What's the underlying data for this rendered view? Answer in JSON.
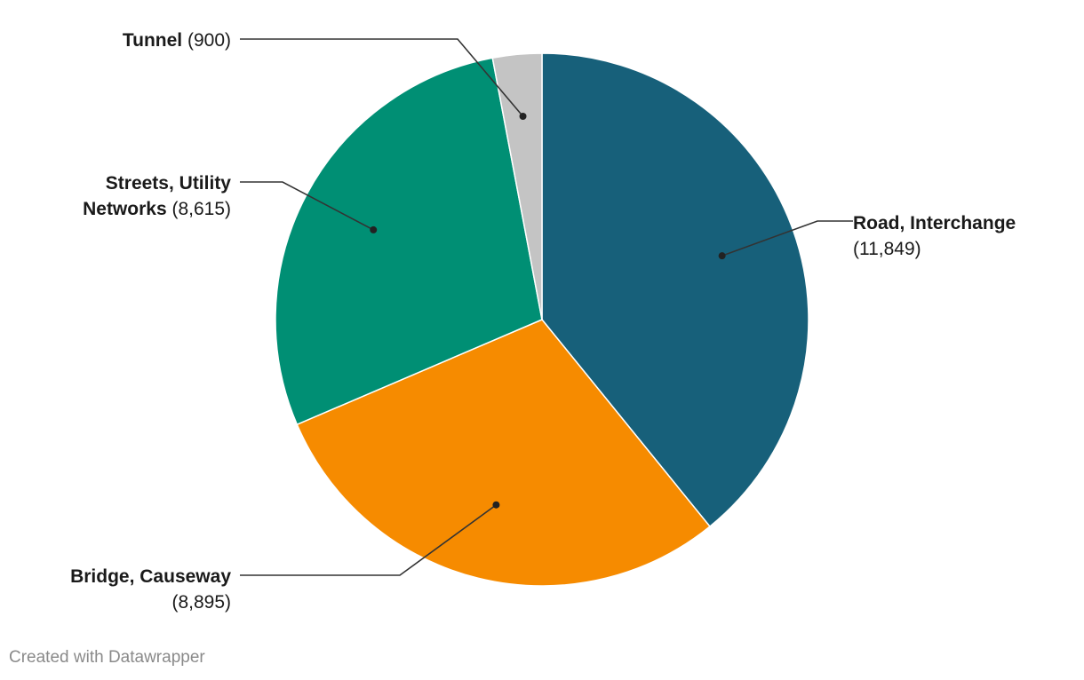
{
  "chart_data": {
    "type": "pie",
    "categories": [
      "Road, Interchange",
      "Bridge, Causeway",
      "Streets, Utility Networks",
      "Tunnel"
    ],
    "values": [
      11849,
      8895,
      8615,
      900
    ],
    "value_labels": [
      "(11,849)",
      "(8,895)",
      "(8,615)",
      "(900)"
    ],
    "colors": [
      "#17607a",
      "#f68b00",
      "#008f74",
      "#c4c4c4"
    ],
    "start": "top, clockwise",
    "legend": "none (direct labels with leader lines)"
  },
  "credit": "Created with Datawrapper"
}
